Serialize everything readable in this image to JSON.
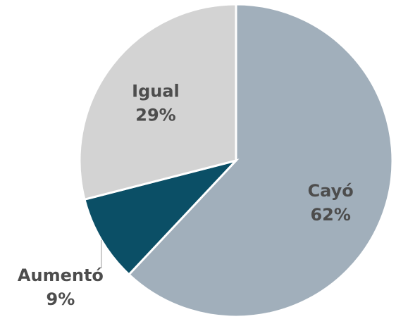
{
  "chart_data": {
    "type": "pie",
    "categories": [
      "Cayó",
      "Aumentó",
      "Igual"
    ],
    "values": [
      62,
      9,
      29
    ],
    "value_labels": [
      "62%",
      "9%",
      "29%"
    ],
    "colors": [
      "#a1afbb",
      "#0b4f66",
      "#d3d3d3"
    ]
  }
}
